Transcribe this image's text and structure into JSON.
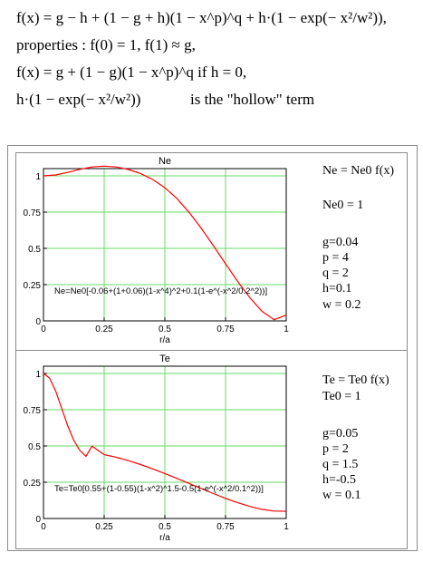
{
  "equations": {
    "line1": "f(x) = g − h + (1 − g + h)(1 − x^p)^q  +  h·(1 − exp(− x²/w²)),",
    "line2": "properties :  f(0) = 1,  f(1) ≈ g,",
    "line3": "f(x) = g + (1 − g)(1 − x^p)^q   if   h = 0,",
    "line4_expr": "h·(1 − exp(− x²/w²))",
    "line4_text": "is the \"hollow\" term"
  },
  "chart_data": [
    {
      "type": "line",
      "title": "Ne",
      "xlabel": "r/a",
      "ylabel": "",
      "xlim": [
        0,
        1
      ],
      "ylim": [
        0,
        1.05
      ],
      "x_ticks": [
        "0",
        "0.25",
        "0.5",
        "0.75",
        "1"
      ],
      "y_ticks": [
        "0",
        "0.25",
        "0.5",
        "0.75",
        "1"
      ],
      "grid": true,
      "annotation": "Ne=Ne0[-0.06+(1+0.06)(1-x^4)^2+0.1(1-e^(-x^2/0.2^2))]",
      "series": [
        {
          "color": "#ff0000",
          "x": [
            0,
            0.05,
            0.1,
            0.15,
            0.2,
            0.25,
            0.3,
            0.35,
            0.4,
            0.45,
            0.5,
            0.55,
            0.6,
            0.65,
            0.7,
            0.75,
            0.8,
            0.85,
            0.9,
            0.95,
            1.0
          ],
          "values": [
            1.0,
            1.006,
            1.024,
            1.045,
            1.061,
            1.067,
            1.061,
            1.044,
            1.016,
            0.975,
            0.918,
            0.843,
            0.748,
            0.638,
            0.518,
            0.394,
            0.272,
            0.16,
            0.066,
            0.008,
            0.04
          ]
        }
      ],
      "params": [
        "Ne = Ne0 f(x)",
        "Ne0 = 1",
        "g=0.04",
        "p = 4",
        "q = 2",
        "h=0.1",
        "w = 0.2"
      ]
    },
    {
      "type": "line",
      "title": "Te",
      "xlabel": "r/a",
      "ylabel": "",
      "xlim": [
        0,
        1
      ],
      "ylim": [
        0,
        1.05
      ],
      "x_ticks": [
        "0",
        "0.25",
        "0.5",
        "0.75",
        "1"
      ],
      "y_ticks": [
        "0",
        "0.25",
        "0.5",
        "0.75",
        "1"
      ],
      "grid": true,
      "annotation": "Te=Te0[0.55+(1-0.55)(1-x^2)^1.5-0.5(1-e^(-x^2/0.1^2))]",
      "series": [
        {
          "color": "#ff0000",
          "x": [
            0,
            0.025,
            0.05,
            0.075,
            0.1,
            0.125,
            0.15,
            0.175,
            0.2,
            0.25,
            0.3,
            0.35,
            0.4,
            0.45,
            0.5,
            0.55,
            0.6,
            0.65,
            0.7,
            0.75,
            0.8,
            0.85,
            0.9,
            0.95,
            1.0
          ],
          "values": [
            1.0,
            0.968,
            0.88,
            0.76,
            0.638,
            0.538,
            0.469,
            0.429,
            0.499,
            0.44,
            0.422,
            0.399,
            0.372,
            0.342,
            0.31,
            0.276,
            0.241,
            0.206,
            0.172,
            0.139,
            0.109,
            0.083,
            0.063,
            0.051,
            0.05
          ]
        }
      ],
      "params": [
        "Te = Te0 f(x)",
        "Te0 = 1",
        "g=0.05",
        "p = 2",
        "q = 1.5",
        "h=-0.5",
        "w = 0.1"
      ]
    }
  ]
}
